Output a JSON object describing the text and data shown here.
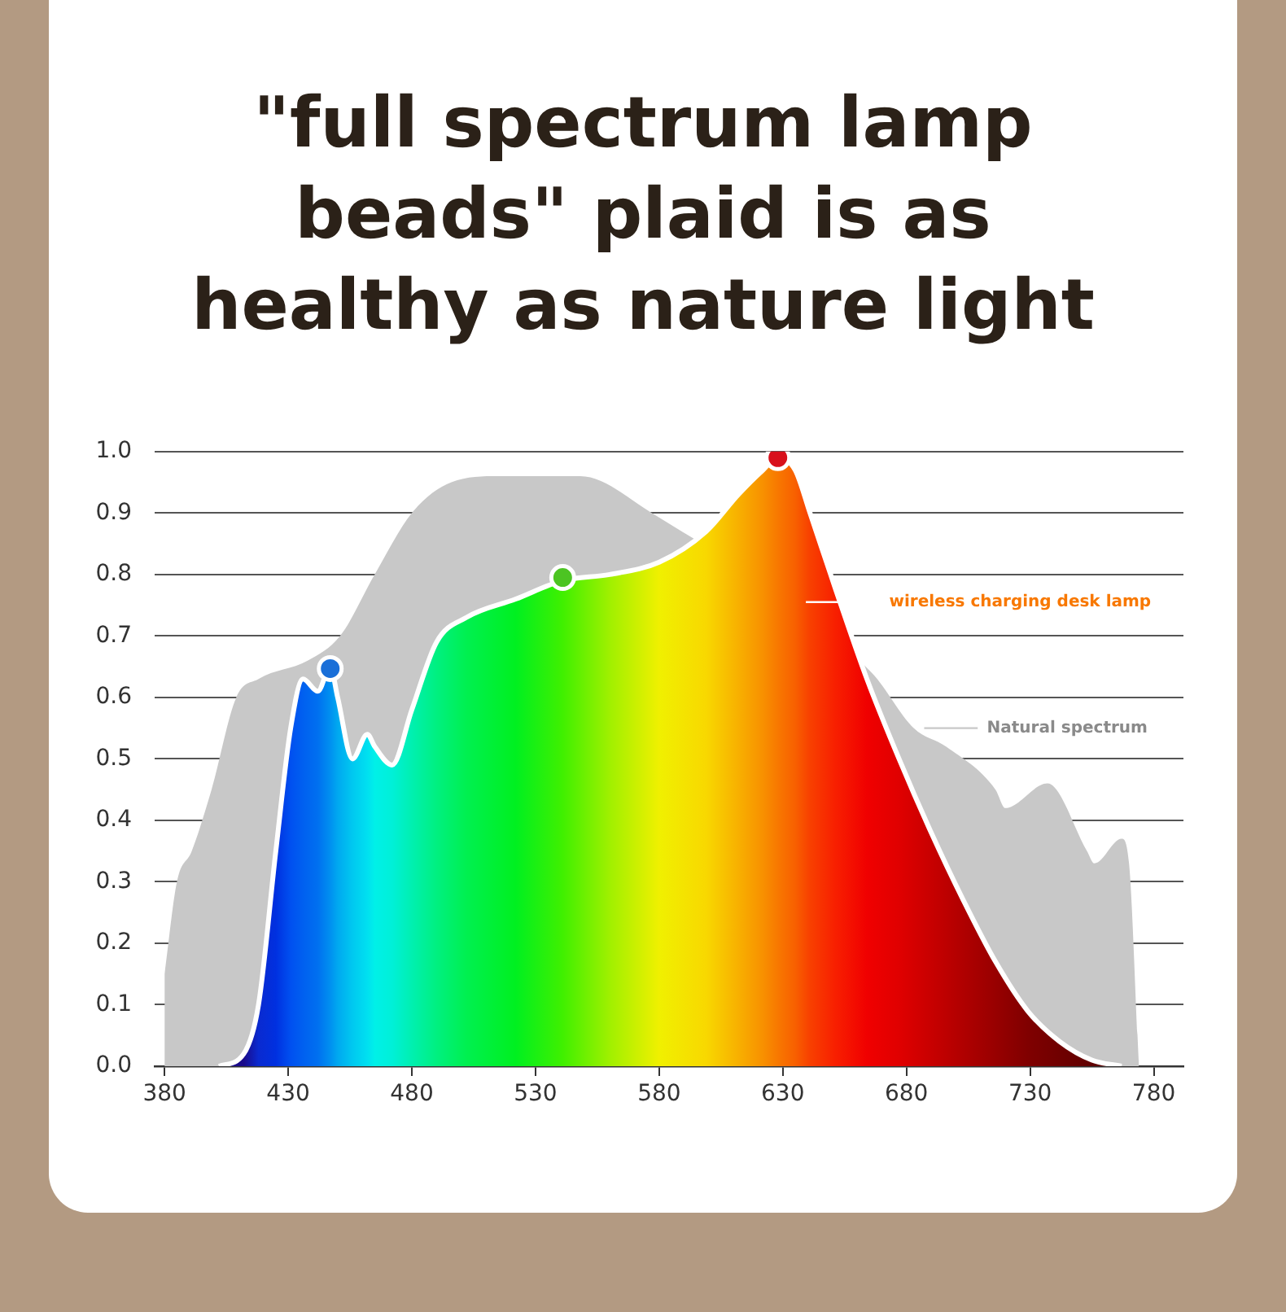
{
  "chart_data": {
    "type": "area",
    "title": "\"full spectrum lamp beads\" plaid is as healthy as nature light",
    "xlim": [
      376,
      792
    ],
    "xticks": [
      380,
      430,
      480,
      530,
      580,
      630,
      680,
      730,
      780
    ],
    "ylim": [
      0,
      1.0
    ],
    "yticks": [
      {
        "value": 0,
        "label": "0.0"
      },
      0.1,
      0.2,
      0.3,
      0.4,
      0.5,
      0.6,
      0.7,
      0.8,
      0.9,
      {
        "value": 1,
        "label": "1.0"
      }
    ],
    "grid": "y",
    "legend": "right",
    "series": [
      {
        "name": "Natural spectrum",
        "color": "#c8c8c8",
        "x": [
          380,
          385,
          391,
          399,
          409,
          418,
          438,
          451,
          465,
          480,
          496,
          515,
          548,
          577,
          583,
          620,
          666,
          683,
          696,
          716,
          720,
          737,
          753,
          756,
          767,
          770,
          774
        ],
        "values": [
          0.15,
          0.3,
          0.35,
          0.45,
          0.6,
          0.63,
          0.66,
          0.7,
          0.8,
          0.9,
          0.95,
          0.96,
          0.96,
          0.9,
          null,
          null,
          0.64,
          0.55,
          0.52,
          0.45,
          0.42,
          0.46,
          0.35,
          0.33,
          0.37,
          0.33,
          0
        ]
      },
      {
        "name": "wireless charging desk lamp",
        "x": [
          402,
          412,
          418,
          425,
          431,
          436,
          442,
          447,
          450,
          456,
          462,
          465,
          472,
          480,
          490,
          502,
          522,
          541,
          560,
          580,
          599,
          612,
          622,
          628,
          635,
          641,
          651,
          664,
          677,
          690,
          703,
          716,
          729,
          742,
          755,
          767
        ],
        "values": [
          0,
          0.02,
          0.1,
          0.35,
          0.55,
          0.63,
          0.61,
          0.65,
          0.6,
          0.5,
          0.54,
          0.52,
          0.49,
          0.58,
          0.69,
          0.73,
          0.76,
          0.79,
          0.8,
          0.82,
          0.87,
          0.93,
          0.97,
          0.99,
          0.97,
          0.9,
          0.78,
          0.63,
          0.5,
          0.38,
          0.27,
          0.17,
          0.09,
          0.04,
          0.01,
          0
        ],
        "colors": [
          "#1a0a8a",
          "#1a0a8a",
          "#0a2ad0",
          "#0030e0",
          "#0050f0",
          "#0060f0",
          "#0070f0",
          "#0090f0",
          "#00a8f0",
          "#00c8f0",
          "#00e0f0",
          "#00f0e8",
          "#00f0d8",
          "#00f0b0",
          "#00f080",
          "#00f050",
          "#00f020",
          "#40f000",
          "#a0f000",
          "#f0f000",
          "#f8d800",
          "#f8b000",
          "#f89000",
          "#f87800",
          "#f86000",
          "#f84000",
          "#f82000",
          "#f00000",
          "#e00000",
          "#c80000",
          "#b00000",
          "#980000",
          "#800000",
          "#700000",
          "#600000",
          "#500000"
        ]
      },
      {
        "type": "scatter",
        "marker": "circle",
        "x": [
          447,
          541,
          628
        ],
        "values": [
          0.647,
          0.795,
          0.99
        ],
        "colors": [
          "#1a6fd8",
          "#4cc422",
          "#d8101c"
        ]
      }
    ]
  }
}
